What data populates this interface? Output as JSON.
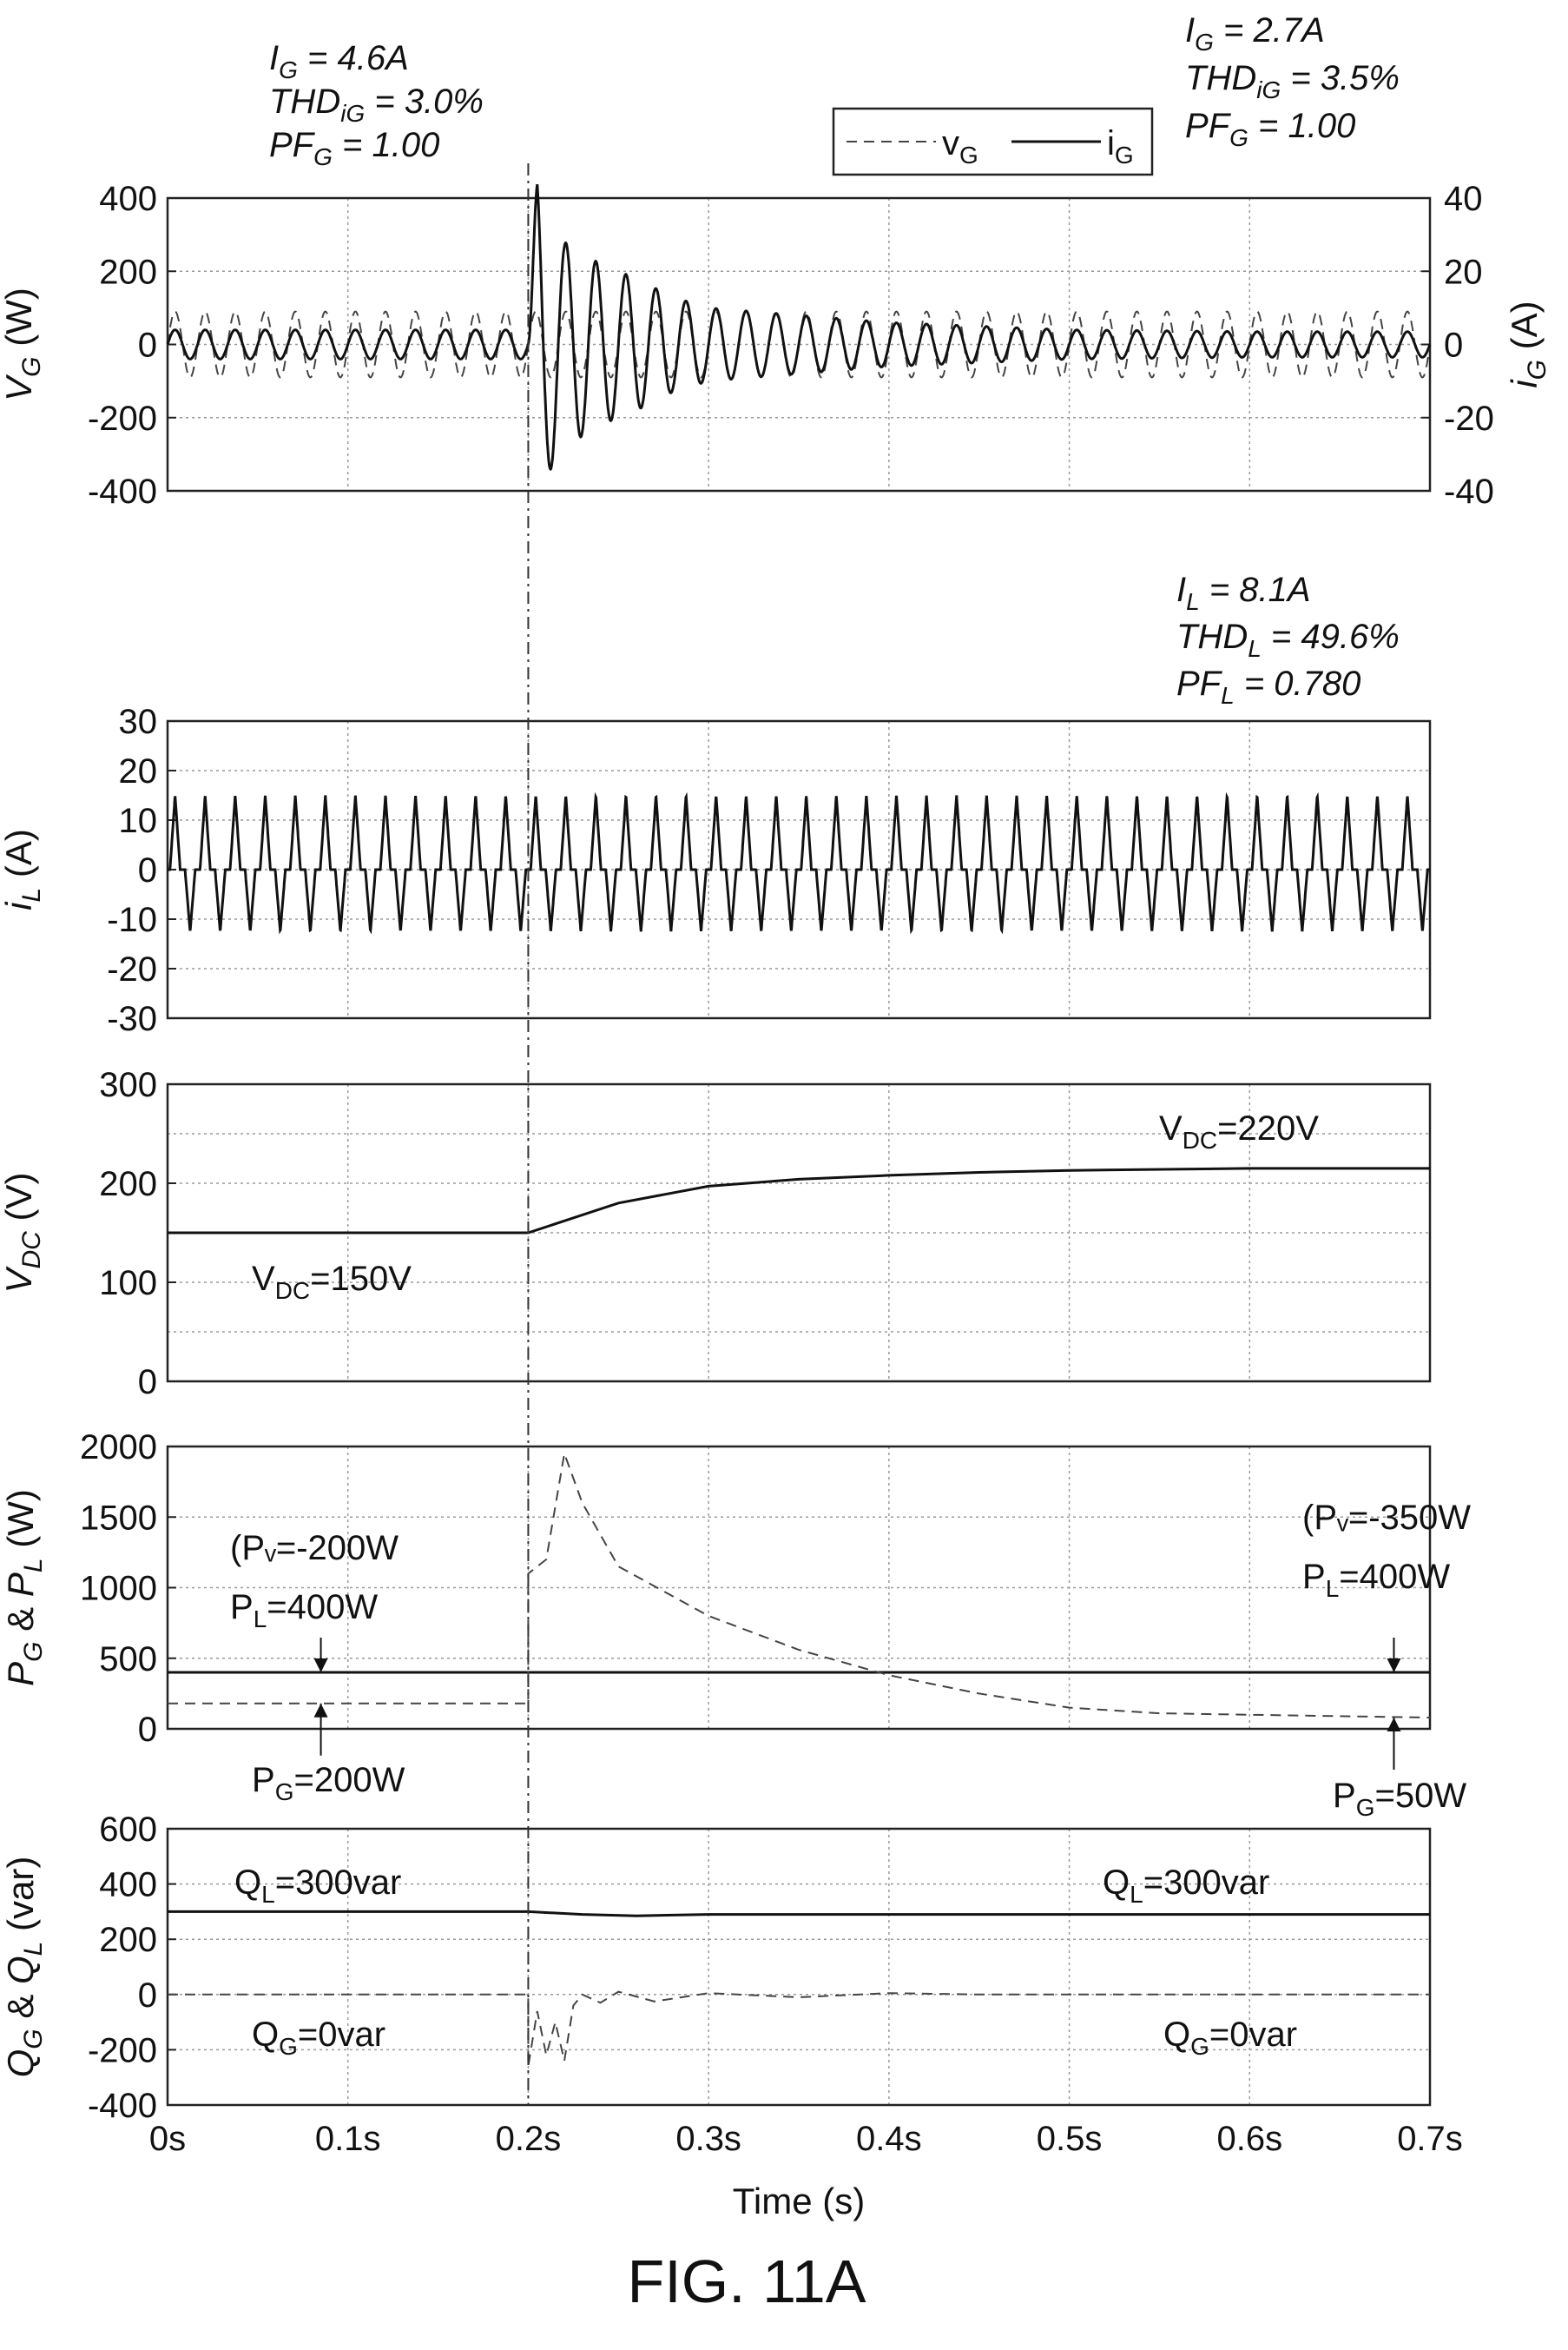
{
  "figure": {
    "caption": "FIG. 11A"
  },
  "chart_data": [
    {
      "type": "line",
      "panel": "grid",
      "ylabel": "V_G (W)",
      "ylabel_right": "i_G (A)",
      "xlim": [
        0,
        0.7
      ],
      "ylim": [
        -400,
        400
      ],
      "ylim_right": [
        -40,
        40
      ],
      "yticks": [
        -400,
        -200,
        0,
        200,
        400
      ],
      "yticks_right": [
        -40,
        -20,
        0,
        20,
        40
      ],
      "grid": true,
      "legend": {
        "position": "top",
        "entries": [
          "v_G",
          "i_G"
        ]
      },
      "series": [
        {
          "name": "v_G",
          "axis": "left",
          "style": "dashed",
          "x": [
            0,
            0.7
          ],
          "y": [
            0,
            0
          ],
          "amplitude": 90,
          "frequency_hz": 60,
          "steady": true
        },
        {
          "name": "i_G",
          "axis": "right",
          "style": "solid",
          "x": [
            0,
            0.2,
            0.205,
            0.21,
            0.22,
            0.24,
            0.26,
            0.28,
            0.3,
            0.35,
            0.4,
            0.45,
            0.5,
            0.6,
            0.7
          ],
          "amplitude": [
            4,
            4,
            46,
            36,
            28,
            22,
            18,
            13,
            10,
            8,
            6,
            5,
            4,
            3.5,
            3.5
          ],
          "frequency_hz": 60
        }
      ],
      "annotations": [
        {
          "lines": [
            "I_G = 4.6A",
            "THD_iG = 3.0%",
            "PF_G = 1.00"
          ]
        },
        {
          "lines": [
            "I_G = 2.7A",
            "THD_iG = 3.5%",
            "PF_G = 1.00"
          ]
        }
      ]
    },
    {
      "type": "line",
      "panel": "load",
      "ylabel": "i_L (A)",
      "xlim": [
        0,
        0.7
      ],
      "ylim": [
        -30,
        30
      ],
      "yticks": [
        -30,
        -20,
        -10,
        0,
        10,
        20,
        30
      ],
      "grid": true,
      "series": [
        {
          "name": "i_L",
          "style": "solid",
          "x": [
            0,
            0.7
          ],
          "peak_positive": 15,
          "peak_negative": -12.5,
          "frequency_hz": 60,
          "waveform": "nonlinear load current"
        }
      ],
      "annotations": [
        {
          "lines": [
            "I_L = 8.1A",
            "THD_L = 49.6%",
            "PF_L = 0.780"
          ]
        }
      ]
    },
    {
      "type": "line",
      "panel": "vdc",
      "ylabel": "V_DC (V)",
      "xlim": [
        0,
        0.7
      ],
      "ylim": [
        0,
        300
      ],
      "yticks": [
        0,
        100,
        200,
        300
      ],
      "grid": true,
      "series": [
        {
          "name": "V_DC",
          "style": "solid",
          "x": [
            0,
            0.1,
            0.2,
            0.22,
            0.25,
            0.3,
            0.35,
            0.4,
            0.45,
            0.5,
            0.6,
            0.7
          ],
          "y": [
            150,
            150,
            150,
            162,
            180,
            197,
            204,
            208,
            211,
            213,
            215,
            215
          ]
        }
      ],
      "annotations": [
        {
          "lines": [
            "V_DC=220V"
          ]
        },
        {
          "lines": [
            "V_DC=150V"
          ]
        }
      ]
    },
    {
      "type": "line",
      "panel": "power",
      "ylabel": "P_G & P_L (W)",
      "xlim": [
        0,
        0.7
      ],
      "ylim": [
        0,
        2000
      ],
      "yticks": [
        0,
        500,
        1000,
        1500,
        2000
      ],
      "grid": true,
      "series": [
        {
          "name": "P_L",
          "style": "solid",
          "x": [
            0,
            0.7
          ],
          "y": [
            400,
            400
          ]
        },
        {
          "name": "P_G",
          "style": "dashed",
          "x": [
            0,
            0.2,
            0.2,
            0.21,
            0.22,
            0.23,
            0.25,
            0.3,
            0.35,
            0.4,
            0.45,
            0.5,
            0.55,
            0.6,
            0.7
          ],
          "y": [
            180,
            180,
            1100,
            1200,
            1950,
            1600,
            1150,
            800,
            560,
            380,
            250,
            150,
            110,
            100,
            80
          ]
        }
      ],
      "annotations": [
        {
          "lines": [
            "(Pᵥ=-200W",
            "P_L=400W"
          ]
        },
        {
          "lines": [
            "P_G=200W"
          ]
        },
        {
          "lines": [
            "(Pᵥ=-350W",
            "P_L=400W"
          ]
        },
        {
          "lines": [
            "P_G=50W"
          ]
        }
      ]
    },
    {
      "type": "line",
      "panel": "reactive",
      "ylabel": "Q_G & Q_L (var)",
      "xlabel": "Time (s)",
      "xlim": [
        0,
        0.7
      ],
      "ylim": [
        -400,
        600
      ],
      "yticks": [
        -400,
        -200,
        0,
        200,
        400,
        600
      ],
      "xticks": [
        "0s",
        "0.1s",
        "0.2s",
        "0.3s",
        "0.4s",
        "0.5s",
        "0.6s",
        "0.7s"
      ],
      "grid": true,
      "series": [
        {
          "name": "Q_L",
          "style": "solid",
          "x": [
            0,
            0.2,
            0.23,
            0.26,
            0.3,
            0.7
          ],
          "y": [
            300,
            300,
            290,
            285,
            290,
            290
          ]
        },
        {
          "name": "Q_G",
          "style": "dashed",
          "x": [
            0,
            0.2,
            0.2,
            0.205,
            0.21,
            0.215,
            0.22,
            0.225,
            0.23,
            0.24,
            0.25,
            0.27,
            0.3,
            0.35,
            0.4,
            0.45,
            0.7
          ],
          "y": [
            0,
            0,
            -260,
            -60,
            -220,
            -100,
            -240,
            -40,
            0,
            -30,
            10,
            -25,
            5,
            -10,
            5,
            0,
            0
          ]
        }
      ],
      "annotations": [
        {
          "lines": [
            "Q_L=300var"
          ]
        },
        {
          "lines": [
            "Q_L=300var"
          ]
        },
        {
          "lines": [
            "Q_G=0var"
          ]
        },
        {
          "lines": [
            "Q_G=0var"
          ]
        }
      ]
    }
  ]
}
